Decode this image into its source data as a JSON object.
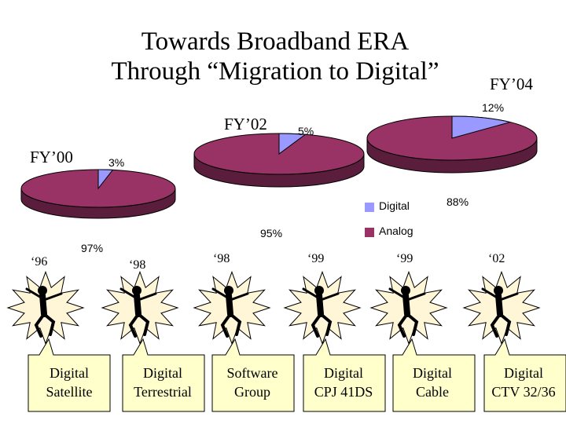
{
  "title": {
    "line1": "Towards Broadband ERA",
    "line2": "Through “Migration to Digital”"
  },
  "chart_data": [
    {
      "type": "pie",
      "title": "FY’00",
      "categories": [
        "Digital",
        "Analog"
      ],
      "values": [
        3,
        97
      ],
      "labels": [
        "3%",
        "97%"
      ]
    },
    {
      "type": "pie",
      "title": "FY’02",
      "categories": [
        "Digital",
        "Analog"
      ],
      "values": [
        5,
        95
      ],
      "labels": [
        "5%",
        "95%"
      ]
    },
    {
      "type": "pie",
      "title": "FY’04",
      "categories": [
        "Digital",
        "Analog"
      ],
      "values": [
        12,
        88
      ],
      "labels": [
        "12%",
        "88%"
      ]
    }
  ],
  "legend": {
    "digital": "Digital",
    "analog": "Analog"
  },
  "colors": {
    "digital": "#9999ff",
    "analog": "#993366",
    "analog_side": "#5a1e3c",
    "callout_fill": "#ffffcc",
    "burst_fill": "#fff6d8"
  },
  "milestones": [
    {
      "year": "‘96",
      "line1": "Digital",
      "line2": "Satellite"
    },
    {
      "year": "‘98",
      "line1": "Digital",
      "line2": "Terrestrial"
    },
    {
      "year": "‘98",
      "line1": "Software",
      "line2": "Group"
    },
    {
      "year": "‘99",
      "line1": "Digital",
      "line2": "CPJ 41DS"
    },
    {
      "year": "‘99",
      "line1": "Digital",
      "line2": "Cable"
    },
    {
      "year": "‘02",
      "line1": "Digital",
      "line2": "CTV 32/36"
    }
  ]
}
